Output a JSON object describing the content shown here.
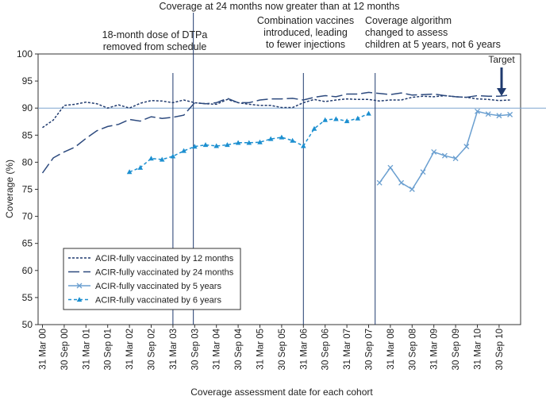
{
  "chart_data": {
    "type": "line",
    "ylabel": "Coverage (%)",
    "xlabel": "Coverage assessment date for each cohort",
    "ylim": [
      50,
      100
    ],
    "yticks": [
      50,
      55,
      60,
      65,
      70,
      75,
      80,
      85,
      90,
      95,
      100
    ],
    "categories": [
      "31 Mar 00",
      "30 Sep 00",
      "31 Mar 01",
      "30 Sep 01",
      "31 Mar 02",
      "30 Sep 02",
      "31 Mar 03",
      "30 Sep 03",
      "31 Mar 04",
      "30 Sep 04",
      "31 Mar 05",
      "30 Sep 05",
      "31 Mar 06",
      "30 Sep 06",
      "31 Mar 07",
      "30 Sep 07",
      "31 Mar 08",
      "30 Sep 08",
      "31 Mar 09",
      "30 Sep 09",
      "31 Mar 10",
      "30 Sep 10"
    ],
    "target": {
      "label": "Target",
      "value": 90
    },
    "legend_position": "bottom-left",
    "series": [
      {
        "name": "ACIR-fully vaccinated by 12 months",
        "color": "#1f3a6e",
        "dash": "3,2",
        "marker": "none",
        "x": [
          0,
          0.5,
          1,
          1.5,
          2,
          2.5,
          3,
          3.5,
          4,
          4.5,
          5,
          5.5,
          6,
          6.5,
          7,
          7.5,
          8,
          8.5,
          9,
          9.5,
          10,
          10.5,
          11,
          11.5,
          12,
          12.5,
          13,
          13.5,
          14,
          14.5,
          15,
          15.5,
          16,
          16.5,
          17,
          17.5,
          18,
          18.5,
          19,
          19.5,
          20,
          20.5,
          21,
          21.5
        ],
        "y": [
          86.4,
          87.8,
          90.5,
          90.7,
          91.1,
          90.8,
          90.0,
          90.6,
          90.0,
          90.9,
          91.4,
          91.3,
          91.0,
          91.5,
          91.0,
          90.8,
          90.7,
          91.6,
          91.0,
          90.7,
          90.5,
          90.5,
          90.1,
          90.1,
          91.0,
          91.6,
          91.2,
          91.5,
          91.7,
          91.6,
          91.6,
          91.3,
          91.5,
          91.5,
          92.0,
          92.2,
          92.1,
          92.3,
          92.1,
          92.0,
          91.7,
          91.6,
          91.4,
          91.5
        ]
      },
      {
        "name": "ACIR-fully vaccinated by 24 months",
        "color": "#2d4a7e",
        "dash": "14,5",
        "marker": "none",
        "x": [
          0,
          0.5,
          1,
          1.5,
          2,
          2.5,
          3,
          3.5,
          4,
          4.5,
          5,
          5.5,
          6,
          6.5,
          7,
          7.5,
          8,
          8.5,
          9,
          9.5,
          10,
          10.5,
          11,
          11.5,
          12,
          12.5,
          13,
          13.5,
          14,
          14.5,
          15,
          15.5,
          16,
          16.5,
          17,
          17.5,
          18,
          18.5,
          19,
          19.5,
          20,
          20.5,
          21,
          21.5
        ],
        "y": [
          78.0,
          80.8,
          81.9,
          82.8,
          84.4,
          85.8,
          86.6,
          87.0,
          87.9,
          87.6,
          88.4,
          88.1,
          88.3,
          88.7,
          91.0,
          90.8,
          91.0,
          91.8,
          91.0,
          91.0,
          91.5,
          91.7,
          91.7,
          91.8,
          91.5,
          92.0,
          92.3,
          92.1,
          92.6,
          92.6,
          92.9,
          92.7,
          92.5,
          92.8,
          92.4,
          92.5,
          92.6,
          92.3,
          92.1,
          92.0,
          92.3,
          92.2,
          92.2,
          92.4
        ]
      },
      {
        "name": "ACIR-fully vaccinated by 5 years",
        "color": "#6a9fd0",
        "dash": "",
        "marker": "x",
        "x": [
          15.5,
          16,
          16.5,
          17,
          17.5,
          18,
          18.5,
          19,
          19.5,
          20,
          20.5,
          21,
          21.5
        ],
        "y": [
          76.2,
          79.0,
          76.2,
          75.0,
          78.2,
          81.9,
          81.2,
          80.7,
          82.9,
          89.4,
          88.9,
          88.6,
          88.8
        ]
      },
      {
        "name": "ACIR-fully vaccinated by 6 years",
        "color": "#1c8fd0",
        "dash": "4,3",
        "marker": "triangle",
        "x": [
          4,
          4.5,
          5,
          5.5,
          6,
          6.5,
          7,
          7.5,
          8,
          8.5,
          9,
          9.5,
          10,
          10.5,
          11,
          11.5,
          12,
          12.5,
          13,
          13.5,
          14,
          14.5,
          15
        ],
        "y": [
          78.2,
          79.0,
          80.7,
          80.5,
          81.1,
          82.1,
          82.9,
          83.2,
          83.0,
          83.2,
          83.6,
          83.6,
          83.7,
          84.3,
          84.6,
          84.0,
          83.0,
          86.2,
          87.8,
          88.0,
          87.6,
          88.1,
          89.0
        ]
      }
    ],
    "annotations": [
      {
        "text": "Coverage at 24 months now greater than at 12 months",
        "x": 6.94,
        "lines": [
          "Coverage at 24 months now greater than at 12 months"
        ]
      },
      {
        "text": "18-month dose of DTPa removed from schedule",
        "x": 6.0,
        "lines": [
          "18-month dose of DTPa",
          "removed from schedule"
        ]
      },
      {
        "text": "Combination vaccines introduced, leading to fewer injections",
        "x": 12.0,
        "lines": [
          "Combination vaccines",
          "introduced, leading",
          "to fewer injections"
        ]
      },
      {
        "text": "Coverage algorithm changed to assess children at 5 years, not 6 years",
        "x": 15.3,
        "lines": [
          "Coverage algorithm",
          "changed to assess",
          "children at 5 years, not 6 years"
        ]
      }
    ]
  }
}
